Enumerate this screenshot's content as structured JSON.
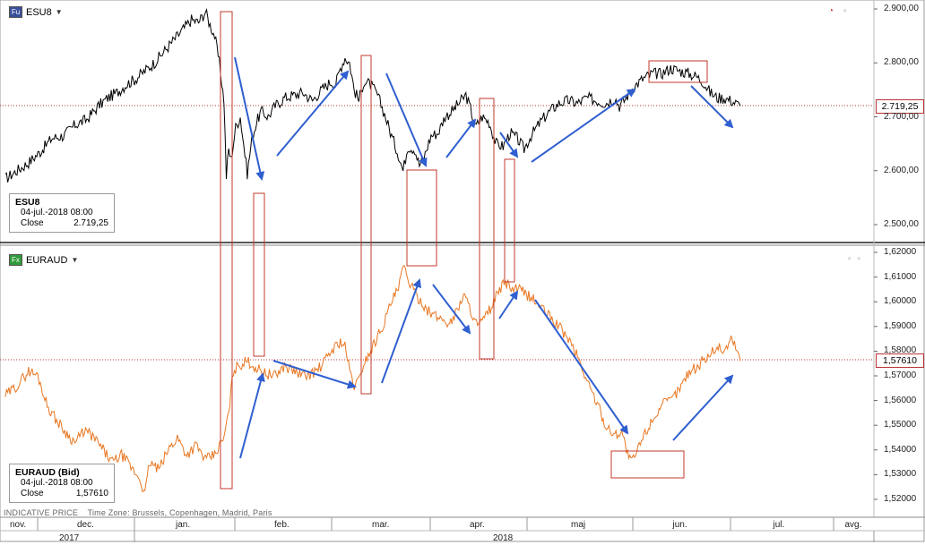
{
  "panels": {
    "top": {
      "symbol": "ESU8",
      "badge": "Fu",
      "info": {
        "name": "ESU8",
        "date": "04-jul.-2018 08:00",
        "close_label": "Close",
        "close_value": "2.719,25"
      },
      "current_price": "2.719,25",
      "y_ticks": [
        "2.900,00",
        "2.800,00",
        "2.700,00",
        "2.600,00",
        "2.500,00"
      ]
    },
    "bottom": {
      "symbol": "EURAUD",
      "badge": "Fx",
      "info": {
        "name": "EURAUD (Bid)",
        "date": "04-jul.-2018 08:00",
        "close_label": "Close",
        "close_value": "1,57610"
      },
      "current_price": "1,57610",
      "y_ticks": [
        "1,62000",
        "1,61000",
        "1,60000",
        "1,59000",
        "1,58000",
        "1,57000",
        "1,56000",
        "1,55000",
        "1,54000",
        "1,53000",
        "1,52000"
      ]
    }
  },
  "footer": {
    "indicative": "INDICATIVE PRICE",
    "timezone": "Time Zone: Brussels, Copenhagen, Madrid, Paris",
    "months": [
      "nov.",
      "dec.",
      "jan.",
      "feb.",
      "mar.",
      "apr.",
      "maj",
      "jun.",
      "jul.",
      "avg."
    ],
    "years": [
      "2017",
      "2018"
    ]
  },
  "chart_data": [
    {
      "type": "line",
      "series": [
        {
          "name": "ESU8",
          "color": "#000000",
          "anchors": [
            [
              0,
              2.585
            ],
            [
              5,
              2.6
            ],
            [
              10,
              2.615
            ],
            [
              15,
              2.635
            ],
            [
              20,
              2.66
            ],
            [
              25,
              2.665
            ],
            [
              30,
              2.685
            ],
            [
              35,
              2.695
            ],
            [
              40,
              2.72
            ],
            [
              44,
              2.735
            ],
            [
              48,
              2.745
            ],
            [
              52,
              2.76
            ],
            [
              56,
              2.77
            ],
            [
              60,
              2.785
            ],
            [
              64,
              2.8
            ],
            [
              68,
              2.82
            ],
            [
              72,
              2.84
            ],
            [
              76,
              2.86
            ],
            [
              80,
              2.88
            ],
            [
              83,
              2.875
            ],
            [
              86,
              2.895
            ],
            [
              88,
              2.87
            ],
            [
              90,
              2.85
            ],
            [
              92,
              2.8
            ],
            [
              94,
              2.73
            ],
            [
              95,
              2.59
            ],
            [
              96,
              2.64
            ],
            [
              97,
              2.62
            ],
            [
              99,
              2.68
            ],
            [
              101,
              2.7
            ],
            [
              103,
              2.63
            ],
            [
              104,
              2.595
            ],
            [
              106,
              2.66
            ],
            [
              108,
              2.69
            ],
            [
              110,
              2.71
            ],
            [
              113,
              2.7
            ],
            [
              116,
              2.72
            ],
            [
              120,
              2.735
            ],
            [
              124,
              2.74
            ],
            [
              128,
              2.745
            ],
            [
              132,
              2.73
            ],
            [
              136,
              2.75
            ],
            [
              140,
              2.765
            ],
            [
              142,
              2.76
            ],
            [
              144,
              2.79
            ],
            [
              146,
              2.81
            ],
            [
              148,
              2.8
            ],
            [
              150,
              2.75
            ],
            [
              152,
              2.73
            ],
            [
              154,
              2.765
            ],
            [
              157,
              2.76
            ],
            [
              160,
              2.74
            ],
            [
              163,
              2.705
            ],
            [
              166,
              2.665
            ],
            [
              169,
              2.63
            ],
            [
              171,
              2.6
            ],
            [
              173,
              2.645
            ],
            [
              176,
              2.64
            ],
            [
              178,
              2.61
            ],
            [
              180,
              2.625
            ],
            [
              183,
              2.665
            ],
            [
              186,
              2.67
            ],
            [
              189,
              2.7
            ],
            [
              192,
              2.71
            ],
            [
              195,
              2.725
            ],
            [
              198,
              2.74
            ],
            [
              200,
              2.715
            ],
            [
              202,
              2.68
            ],
            [
              205,
              2.7
            ],
            [
              208,
              2.69
            ],
            [
              211,
              2.65
            ],
            [
              214,
              2.645
            ],
            [
              217,
              2.67
            ],
            [
              220,
              2.66
            ],
            [
              223,
              2.64
            ],
            [
              226,
              2.665
            ],
            [
              230,
              2.69
            ],
            [
              234,
              2.71
            ],
            [
              238,
              2.725
            ],
            [
              242,
              2.73
            ],
            [
              246,
              2.725
            ],
            [
              250,
              2.735
            ],
            [
              254,
              2.73
            ],
            [
              258,
              2.725
            ],
            [
              262,
              2.735
            ],
            [
              264,
              2.72
            ],
            [
              266,
              2.73
            ],
            [
              270,
              2.755
            ],
            [
              274,
              2.77
            ],
            [
              278,
              2.78
            ],
            [
              282,
              2.78
            ],
            [
              286,
              2.79
            ],
            [
              290,
              2.785
            ],
            [
              294,
              2.78
            ],
            [
              297,
              2.775
            ],
            [
              300,
              2.765
            ],
            [
              303,
              2.745
            ],
            [
              306,
              2.735
            ],
            [
              309,
              2.735
            ],
            [
              312,
              2.73
            ],
            [
              314,
              2.725
            ],
            [
              316,
              2.72
            ]
          ]
        }
      ]
    },
    {
      "type": "line",
      "series": [
        {
          "name": "EURAUD (Bid)",
          "color": "#e87722",
          "anchors": [
            [
              0,
              1.562
            ],
            [
              5,
              1.566
            ],
            [
              10,
              1.572
            ],
            [
              14,
              1.57
            ],
            [
              18,
              1.558
            ],
            [
              22,
              1.552
            ],
            [
              26,
              1.547
            ],
            [
              30,
              1.543
            ],
            [
              34,
              1.548
            ],
            [
              38,
              1.545
            ],
            [
              42,
              1.54
            ],
            [
              46,
              1.535
            ],
            [
              50,
              1.538
            ],
            [
              54,
              1.533
            ],
            [
              58,
              1.528
            ],
            [
              60,
              1.522
            ],
            [
              62,
              1.535
            ],
            [
              66,
              1.532
            ],
            [
              70,
              1.54
            ],
            [
              74,
              1.545
            ],
            [
              78,
              1.538
            ],
            [
              82,
              1.542
            ],
            [
              86,
              1.536
            ],
            [
              90,
              1.538
            ],
            [
              94,
              1.545
            ],
            [
              96,
              1.555
            ],
            [
              98,
              1.572
            ],
            [
              100,
              1.574
            ],
            [
              104,
              1.576
            ],
            [
              108,
              1.573
            ],
            [
              112,
              1.571
            ],
            [
              116,
              1.57
            ],
            [
              120,
              1.574
            ],
            [
              124,
              1.572
            ],
            [
              128,
              1.57
            ],
            [
              132,
              1.571
            ],
            [
              136,
              1.574
            ],
            [
              140,
              1.58
            ],
            [
              144,
              1.584
            ],
            [
              146,
              1.582
            ],
            [
              148,
              1.572
            ],
            [
              150,
              1.566
            ],
            [
              152,
              1.568
            ],
            [
              154,
              1.575
            ],
            [
              157,
              1.58
            ],
            [
              160,
              1.586
            ],
            [
              163,
              1.592
            ],
            [
              166,
              1.6
            ],
            [
              169,
              1.605
            ],
            [
              171,
              1.614
            ],
            [
              173,
              1.61
            ],
            [
              176,
              1.603
            ],
            [
              179,
              1.6
            ],
            [
              182,
              1.596
            ],
            [
              185,
              1.594
            ],
            [
              188,
              1.593
            ],
            [
              191,
              1.591
            ],
            [
              194,
              1.596
            ],
            [
              197,
              1.603
            ],
            [
              200,
              1.597
            ],
            [
              203,
              1.59
            ],
            [
              206,
              1.593
            ],
            [
              209,
              1.598
            ],
            [
              212,
              1.604
            ],
            [
              215,
              1.608
            ],
            [
              218,
              1.605
            ],
            [
              221,
              1.605
            ],
            [
              224,
              1.603
            ],
            [
              227,
              1.601
            ],
            [
              230,
              1.598
            ],
            [
              234,
              1.594
            ],
            [
              238,
              1.59
            ],
            [
              242,
              1.585
            ],
            [
              246,
              1.578
            ],
            [
              250,
              1.568
            ],
            [
              254,
              1.56
            ],
            [
              258,
              1.55
            ],
            [
              262,
              1.546
            ],
            [
              265,
              1.548
            ],
            [
              267,
              1.54
            ],
            [
              269,
              1.535
            ],
            [
              271,
              1.538
            ],
            [
              274,
              1.545
            ],
            [
              278,
              1.552
            ],
            [
              282,
              1.558
            ],
            [
              286,
              1.56
            ],
            [
              290,
              1.565
            ],
            [
              294,
              1.572
            ],
            [
              298,
              1.574
            ],
            [
              302,
              1.578
            ],
            [
              306,
              1.582
            ],
            [
              309,
              1.58
            ],
            [
              312,
              1.585
            ],
            [
              314,
              1.582
            ],
            [
              316,
              1.576
            ]
          ]
        }
      ]
    }
  ],
  "annotations": {
    "top_rects": [
      [
        240,
        2.56,
        2.9
      ],
      [
        296,
        2.56,
        2.82
      ],
      [
        359,
        2.66,
        2.78
      ],
      [
        429,
        2.6,
        2.75
      ],
      [
        466,
        2.67,
        2.75
      ],
      [
        564,
        2.65,
        2.77
      ],
      [
        618,
        2.73,
        2.81
      ]
    ],
    "bottom_rects": [
      [
        240,
        1.521,
        1.615
      ],
      [
        246,
        1.5775,
        1.61
      ],
      [
        298,
        1.5625,
        1.62
      ],
      [
        366,
        1.597,
        1.625
      ],
      [
        402,
        1.5775,
        1.6
      ],
      [
        442,
        1.6075,
        1.615
      ],
      [
        502,
        1.528,
        1.54
      ]
    ]
  }
}
